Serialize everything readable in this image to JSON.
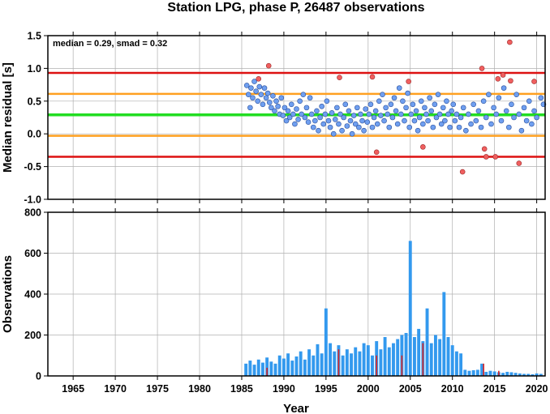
{
  "chart_data": [
    {
      "type": "scatter",
      "title": "Station LPG, phase P, 26487 observations",
      "ylabel": "Median residual [s]",
      "annotation": "median = 0.29, smad = 0.32",
      "xlim": [
        1962,
        2021
      ],
      "ylim": [
        -1.0,
        1.5
      ],
      "x_ticks": [
        "1965",
        "1970",
        "1975",
        "1980",
        "1985",
        "1990",
        "1995",
        "2000",
        "2005",
        "2010",
        "2015",
        "2020"
      ],
      "y_ticks": [
        "1.5",
        "1.0",
        "0.5",
        "0.0",
        "-0.5",
        "-1.0"
      ],
      "y_tick_values": [
        1.5,
        1.0,
        0.5,
        0.0,
        -0.5,
        -1.0
      ],
      "grid": true,
      "reference_lines": [
        {
          "value": 0.29,
          "color": "#22dd22"
        },
        {
          "value": 0.61,
          "color": "#ffa020"
        },
        {
          "value": -0.03,
          "color": "#ffa020"
        },
        {
          "value": 0.93,
          "color": "#dd1111"
        },
        {
          "value": -0.35,
          "color": "#dd1111"
        }
      ],
      "point_colors": {
        "normal": "#6f9ff0",
        "outlier": "#f05f5f"
      },
      "series": [
        {
          "points": [
            [
              1985.6,
              0.74
            ],
            [
              1985.8,
              0.6
            ],
            [
              1986.0,
              0.4
            ],
            [
              1986.1,
              0.7
            ],
            [
              1986.3,
              0.55
            ],
            [
              1986.5,
              0.8
            ],
            [
              1986.7,
              0.65
            ],
            [
              1986.9,
              0.5
            ],
            [
              1987.1,
              0.72
            ],
            [
              1987.3,
              0.6
            ],
            [
              1987.5,
              0.45
            ],
            [
              1987.7,
              0.7
            ],
            [
              1987.9,
              0.55
            ],
            [
              1988.1,
              0.62
            ],
            [
              1988.3,
              0.48
            ],
            [
              1988.5,
              0.4
            ],
            [
              1988.7,
              0.58
            ],
            [
              1988.9,
              0.35
            ],
            [
              1989.1,
              0.5
            ],
            [
              1989.3,
              0.42
            ],
            [
              1989.5,
              0.3
            ],
            [
              1989.7,
              0.55
            ],
            [
              1989.9,
              0.28
            ],
            [
              1990.1,
              0.4
            ],
            [
              1990.3,
              0.2
            ],
            [
              1990.5,
              0.35
            ],
            [
              1990.7,
              0.25
            ],
            [
              1990.9,
              0.45
            ],
            [
              1991.1,
              0.3
            ],
            [
              1991.3,
              0.15
            ],
            [
              1991.5,
              0.38
            ],
            [
              1991.7,
              0.22
            ],
            [
              1991.9,
              0.5
            ],
            [
              1992.1,
              0.3
            ],
            [
              1992.3,
              0.6
            ],
            [
              1992.5,
              0.25
            ],
            [
              1992.7,
              0.4
            ],
            [
              1992.9,
              0.18
            ],
            [
              1993.1,
              0.55
            ],
            [
              1993.3,
              0.3
            ],
            [
              1993.5,
              0.1
            ],
            [
              1993.7,
              0.2
            ],
            [
              1993.9,
              0.35
            ],
            [
              1994.1,
              0.05
            ],
            [
              1994.3,
              0.25
            ],
            [
              1994.5,
              0.42
            ],
            [
              1994.7,
              0.15
            ],
            [
              1994.9,
              0.3
            ],
            [
              1995.1,
              0.5
            ],
            [
              1995.3,
              0.2
            ],
            [
              1995.5,
              0.1
            ],
            [
              1995.7,
              0.32
            ],
            [
              1995.9,
              0.0
            ],
            [
              1996.1,
              0.22
            ],
            [
              1996.3,
              0.4
            ],
            [
              1996.5,
              0.15
            ],
            [
              1996.7,
              0.3
            ],
            [
              1996.9,
              0.05
            ],
            [
              1997.1,
              0.25
            ],
            [
              1997.3,
              0.45
            ],
            [
              1997.5,
              0.12
            ],
            [
              1997.7,
              0.35
            ],
            [
              1997.9,
              0.2
            ],
            [
              1998.1,
              0.0
            ],
            [
              1998.3,
              0.28
            ],
            [
              1998.5,
              0.15
            ],
            [
              1998.7,
              0.4
            ],
            [
              1998.9,
              0.1
            ],
            [
              1999.1,
              0.3
            ],
            [
              1999.3,
              0.2
            ],
            [
              1999.5,
              0.05
            ],
            [
              1999.7,
              0.38
            ],
            [
              1999.9,
              0.18
            ],
            [
              2000.1,
              0.3
            ],
            [
              2000.3,
              0.45
            ],
            [
              2000.5,
              0.1
            ],
            [
              2000.7,
              0.25
            ],
            [
              2000.9,
              0.35
            ],
            [
              2001.1,
              0.15
            ],
            [
              2001.3,
              0.5
            ],
            [
              2001.5,
              0.28
            ],
            [
              2001.7,
              0.6
            ],
            [
              2001.9,
              0.2
            ],
            [
              2002.1,
              0.4
            ],
            [
              2002.3,
              0.3
            ],
            [
              2002.5,
              0.1
            ],
            [
              2002.7,
              0.45
            ],
            [
              2002.9,
              0.25
            ],
            [
              2003.1,
              0.55
            ],
            [
              2003.3,
              0.35
            ],
            [
              2003.5,
              0.15
            ],
            [
              2003.7,
              0.7
            ],
            [
              2003.9,
              0.3
            ],
            [
              2004.1,
              0.5
            ],
            [
              2004.3,
              0.2
            ],
            [
              2004.5,
              0.4
            ],
            [
              2004.7,
              0.62
            ],
            [
              2004.9,
              0.1
            ],
            [
              2005.1,
              0.3
            ],
            [
              2005.3,
              0.45
            ],
            [
              2005.5,
              0.2
            ],
            [
              2005.7,
              0.35
            ],
            [
              2005.9,
              0.05
            ],
            [
              2006.1,
              0.25
            ],
            [
              2006.3,
              0.5
            ],
            [
              2006.5,
              0.15
            ],
            [
              2006.7,
              0.4
            ],
            [
              2006.9,
              0.3
            ],
            [
              2007.1,
              0.2
            ],
            [
              2007.3,
              0.55
            ],
            [
              2007.5,
              0.35
            ],
            [
              2007.7,
              0.1
            ],
            [
              2007.9,
              0.45
            ],
            [
              2008.1,
              0.25
            ],
            [
              2008.3,
              0.6
            ],
            [
              2008.5,
              0.3
            ],
            [
              2008.7,
              0.15
            ],
            [
              2008.9,
              0.4
            ],
            [
              2009.1,
              0.2
            ],
            [
              2009.3,
              0.5
            ],
            [
              2009.5,
              0.3
            ],
            [
              2009.7,
              0.1
            ],
            [
              2009.9,
              0.35
            ],
            [
              2010.1,
              0.45
            ],
            [
              2010.3,
              0.2
            ],
            [
              2010.5,
              0.3
            ],
            [
              2010.8,
              0.1
            ],
            [
              2011.0,
              0.25
            ],
            [
              2011.3,
              0.4
            ],
            [
              2011.6,
              0.05
            ],
            [
              2011.9,
              0.3
            ],
            [
              2012.2,
              0.15
            ],
            [
              2012.5,
              0.45
            ],
            [
              2012.8,
              0.2
            ],
            [
              2013.1,
              0.35
            ],
            [
              2013.4,
              0.1
            ],
            [
              2013.7,
              0.5
            ],
            [
              2014.0,
              0.25
            ],
            [
              2014.3,
              0.6
            ],
            [
              2014.6,
              0.15
            ],
            [
              2014.9,
              0.4
            ],
            [
              2015.2,
              0.3
            ],
            [
              2015.5,
              0.55
            ],
            [
              2015.8,
              0.2
            ],
            [
              2016.1,
              0.7
            ],
            [
              2016.4,
              0.35
            ],
            [
              2016.7,
              0.1
            ],
            [
              2017.0,
              0.45
            ],
            [
              2017.3,
              0.25
            ],
            [
              2017.6,
              0.6
            ],
            [
              2017.9,
              0.3
            ],
            [
              2018.2,
              0.05
            ],
            [
              2018.5,
              0.4
            ],
            [
              2018.8,
              0.2
            ],
            [
              2019.1,
              0.5
            ],
            [
              2019.4,
              0.15
            ],
            [
              2019.7,
              0.35
            ],
            [
              2020.0,
              0.25
            ],
            [
              2020.5,
              0.55
            ],
            [
              2020.8,
              0.45
            ]
          ],
          "outliers": [
            [
              1987.0,
              0.84
            ],
            [
              1988.2,
              1.04
            ],
            [
              1996.6,
              0.86
            ],
            [
              2000.5,
              0.87
            ],
            [
              2001.0,
              -0.28
            ],
            [
              2004.8,
              0.8
            ],
            [
              2006.5,
              -0.2
            ],
            [
              2011.2,
              -0.58
            ],
            [
              2013.5,
              1.0
            ],
            [
              2013.8,
              -0.23
            ],
            [
              2014.0,
              -0.35
            ],
            [
              2015.1,
              -0.35
            ],
            [
              2015.4,
              0.84
            ],
            [
              2016.0,
              0.9
            ],
            [
              2016.8,
              1.4
            ],
            [
              2016.9,
              0.81
            ],
            [
              2017.9,
              -0.45
            ],
            [
              2019.7,
              0.8
            ]
          ]
        }
      ]
    },
    {
      "type": "bar",
      "xlabel": "Year",
      "ylabel": "Observations",
      "xlim": [
        1962,
        2021
      ],
      "ylim": [
        0,
        800
      ],
      "x_ticks": [
        "1965",
        "1970",
        "1975",
        "1980",
        "1985",
        "1990",
        "1995",
        "2000",
        "2005",
        "2010",
        "2015",
        "2020"
      ],
      "y_ticks": [
        "800",
        "600",
        "400",
        "200",
        "0"
      ],
      "y_tick_values": [
        800,
        600,
        400,
        200,
        0
      ],
      "grid": true,
      "bar_color": "#3399ee",
      "highlight_color": "#dd2222",
      "bars": {
        "x": [
          1985.5,
          1986.0,
          1986.5,
          1987.0,
          1987.5,
          1988.0,
          1988.5,
          1989.0,
          1989.5,
          1990.0,
          1990.5,
          1991.0,
          1991.5,
          1992.0,
          1992.5,
          1993.0,
          1993.5,
          1994.0,
          1994.5,
          1995.0,
          1995.5,
          1996.0,
          1996.5,
          1997.0,
          1997.5,
          1998.0,
          1998.5,
          1999.0,
          1999.5,
          2000.0,
          2000.5,
          2001.0,
          2001.5,
          2002.0,
          2002.5,
          2003.0,
          2003.5,
          2004.0,
          2004.5,
          2005.0,
          2005.5,
          2006.0,
          2006.5,
          2007.0,
          2007.5,
          2008.0,
          2008.5,
          2009.0,
          2009.5,
          2010.0,
          2010.5,
          2011.0,
          2011.5,
          2012.0,
          2012.5,
          2013.0,
          2013.5,
          2014.0,
          2014.5,
          2015.0,
          2015.5,
          2016.0,
          2016.5,
          2017.0,
          2017.5,
          2018.0,
          2018.5,
          2019.0,
          2019.5,
          2020.0,
          2020.5
        ],
        "values": [
          60,
          75,
          55,
          80,
          65,
          90,
          70,
          60,
          100,
          85,
          110,
          75,
          95,
          120,
          80,
          130,
          100,
          155,
          110,
          330,
          160,
          120,
          150,
          100,
          130,
          110,
          140,
          120,
          160,
          150,
          100,
          170,
          130,
          190,
          140,
          160,
          180,
          200,
          210,
          660,
          190,
          230,
          170,
          330,
          160,
          200,
          180,
          410,
          190,
          150,
          120,
          110,
          30,
          25,
          28,
          30,
          60,
          20,
          25,
          22,
          18,
          15,
          20,
          18,
          15,
          12,
          10,
          10,
          8,
          12,
          10
        ],
        "highlights": [
          [
            1988.0,
            40
          ],
          [
            1996.5,
            130
          ],
          [
            2001.0,
            100
          ],
          [
            2004.0,
            100
          ],
          [
            2006.5,
            160
          ],
          [
            2013.7,
            60
          ],
          [
            2015.5,
            25
          ]
        ]
      }
    }
  ]
}
